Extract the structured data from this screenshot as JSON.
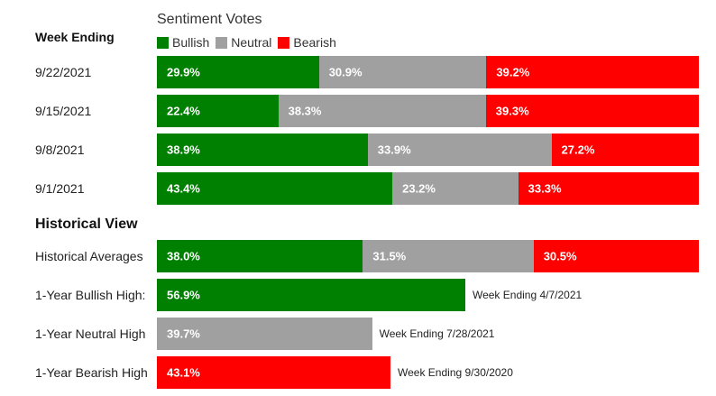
{
  "colors": {
    "bullish": "#008000",
    "neutral": "#a0a0a0",
    "bearish": "#ff0000"
  },
  "legend_title": "Sentiment Votes",
  "week_heading": "Week Ending",
  "historical_heading": "Historical View",
  "legend": [
    {
      "label": "Bullish",
      "key": "bullish"
    },
    {
      "label": "Neutral",
      "key": "neutral"
    },
    {
      "label": "Bearish",
      "key": "bearish"
    }
  ],
  "chart_data": {
    "type": "bar",
    "stacked": true,
    "title": "Sentiment Votes",
    "series_names": [
      "Bullish",
      "Neutral",
      "Bearish"
    ],
    "weekly": [
      {
        "label": "9/22/2021",
        "values": [
          29.9,
          30.9,
          39.2
        ],
        "text": [
          "29.9%",
          "30.9%",
          "39.2%"
        ]
      },
      {
        "label": "9/15/2021",
        "values": [
          22.4,
          38.3,
          39.3
        ],
        "text": [
          "22.4%",
          "38.3%",
          "39.3%"
        ]
      },
      {
        "label": "9/8/2021",
        "values": [
          38.9,
          33.9,
          27.2
        ],
        "text": [
          "38.9%",
          "33.9%",
          "27.2%"
        ]
      },
      {
        "label": "9/1/2021",
        "values": [
          43.4,
          23.2,
          33.3
        ],
        "text": [
          "43.4%",
          "23.2%",
          "33.3%"
        ]
      }
    ],
    "historical_averages": {
      "label": "Historical Averages",
      "values": [
        38.0,
        31.5,
        30.5
      ],
      "text": [
        "38.0%",
        "31.5%",
        "30.5%"
      ]
    },
    "highs": [
      {
        "label": "1-Year Bullish High:",
        "key": "bullish",
        "value": 56.9,
        "text": "56.9%",
        "note": "Week Ending 4/7/2021"
      },
      {
        "label": "1-Year Neutral High",
        "key": "neutral",
        "value": 39.7,
        "text": "39.7%",
        "note": "Week Ending 7/28/2021"
      },
      {
        "label": "1-Year Bearish High",
        "key": "bearish",
        "value": 43.1,
        "text": "43.1%",
        "note": "Week Ending 9/30/2020"
      }
    ]
  }
}
